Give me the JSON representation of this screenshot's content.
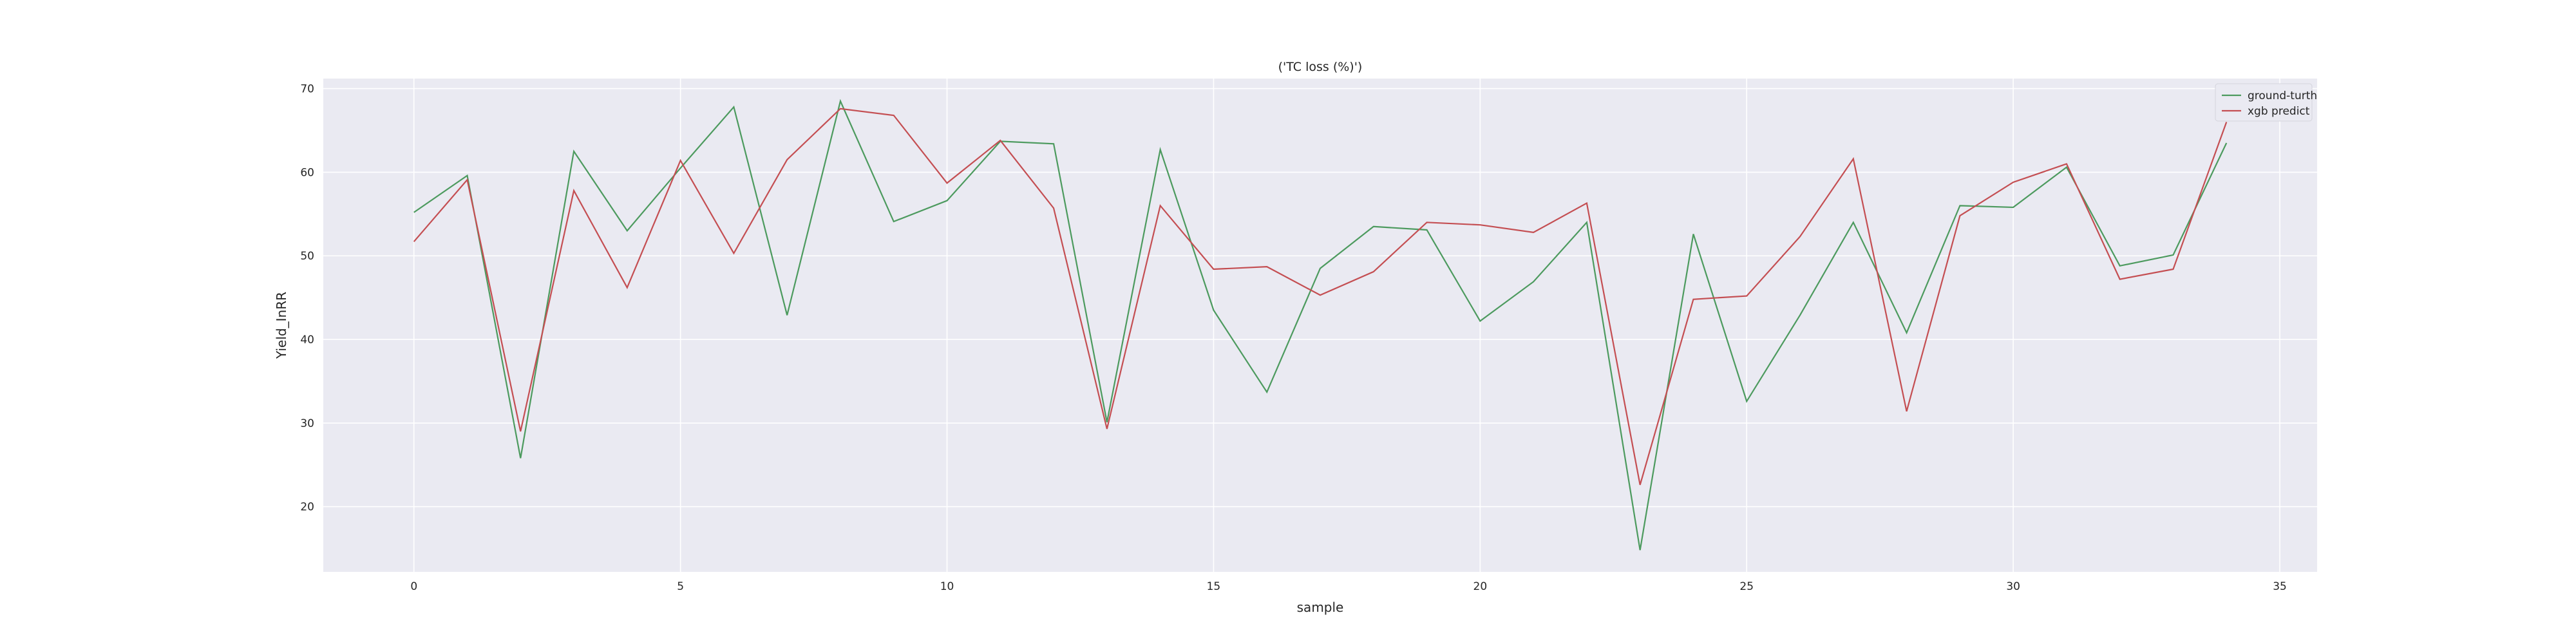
{
  "chart_data": {
    "type": "line",
    "title": "('TC loss (%)')",
    "xlabel": "sample",
    "ylabel": "Yield_InRR",
    "xlim": [
      -1.7,
      35.7
    ],
    "ylim": [
      12.2,
      71.2
    ],
    "xticks": [
      0,
      5,
      10,
      15,
      20,
      25,
      30,
      35
    ],
    "yticks": [
      20,
      30,
      40,
      50,
      60,
      70
    ],
    "grid": true,
    "legend_position": "top-right",
    "x": [
      0,
      1,
      2,
      3,
      4,
      5,
      6,
      7,
      8,
      9,
      10,
      11,
      12,
      13,
      14,
      15,
      16,
      17,
      18,
      19,
      20,
      21,
      22,
      23,
      24,
      25,
      26,
      27,
      28,
      29,
      30,
      31,
      32,
      33,
      34
    ],
    "series": [
      {
        "name": "ground-turth",
        "color": "#4c9a5e",
        "values": [
          55.2,
          59.6,
          25.8,
          62.5,
          53.0,
          60.5,
          67.8,
          42.9,
          68.5,
          54.1,
          56.6,
          63.7,
          63.4,
          30.1,
          62.7,
          43.5,
          33.7,
          48.5,
          53.5,
          53.1,
          42.2,
          46.9,
          54.0,
          14.8,
          52.6,
          32.6,
          42.9,
          54.0,
          40.8,
          56.0,
          55.8,
          60.6,
          48.8,
          50.1,
          63.5
        ]
      },
      {
        "name": "xgb predict",
        "color": "#c44e52",
        "values": [
          51.7,
          59.1,
          29.0,
          57.8,
          46.2,
          61.4,
          50.3,
          61.5,
          67.6,
          66.8,
          58.7,
          63.8,
          55.7,
          29.3,
          56.0,
          48.4,
          48.7,
          45.3,
          48.1,
          54.0,
          53.7,
          52.8,
          56.3,
          22.6,
          44.8,
          45.2,
          52.3,
          61.6,
          31.4,
          54.8,
          58.8,
          61.0,
          47.2,
          48.4,
          66.0
        ]
      }
    ]
  }
}
